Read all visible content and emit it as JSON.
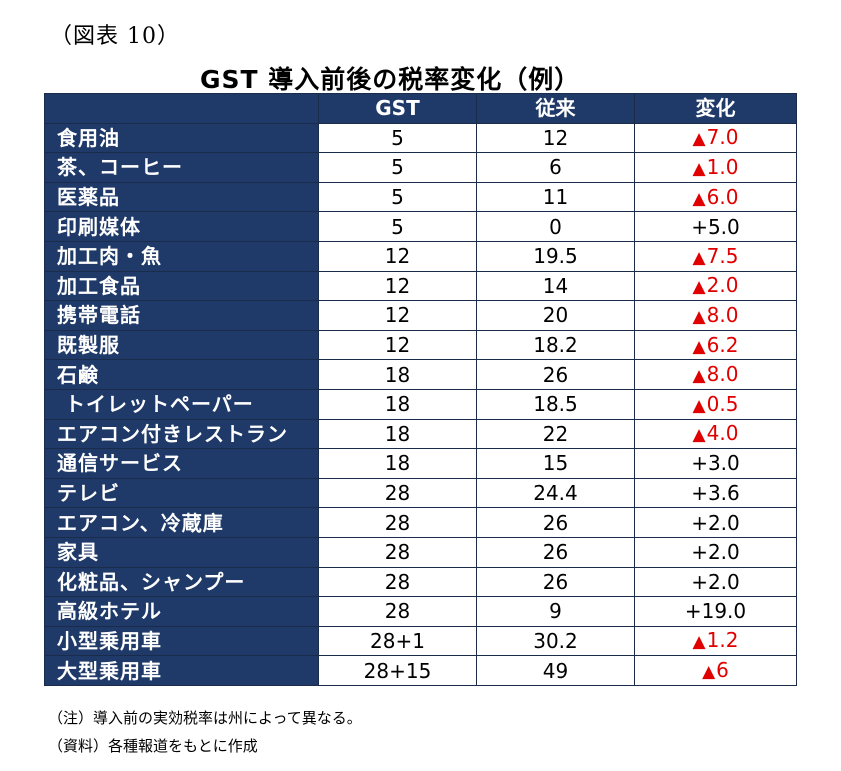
{
  "figure_label": "（図表 10）",
  "title": "GST 導入前後の税率変化（例）",
  "columns": [
    "",
    "GST",
    "従来",
    "変化"
  ],
  "rows": [
    {
      "item": "食用油",
      "gst": "5",
      "before": "12",
      "change": "7.0",
      "rise": true
    },
    {
      "item": "茶、コーヒー",
      "gst": "5",
      "before": "6",
      "change": "1.0",
      "rise": true
    },
    {
      "item": "医薬品",
      "gst": "5",
      "before": "11",
      "change": "6.0",
      "rise": true
    },
    {
      "item": "印刷媒体",
      "gst": "5",
      "before": "0",
      "change": "+5.0",
      "rise": false
    },
    {
      "item": "加工肉・魚",
      "gst": "12",
      "before": "19.5",
      "change": "7.5",
      "rise": true
    },
    {
      "item": "加工食品",
      "gst": "12",
      "before": "14",
      "change": "2.0",
      "rise": true
    },
    {
      "item": "携帯電話",
      "gst": "12",
      "before": "20",
      "change": "8.0",
      "rise": true
    },
    {
      "item": "既製服",
      "gst": "12",
      "before": "18.2",
      "change": "6.2",
      "rise": true
    },
    {
      "item": "石鹸",
      "gst": "18",
      "before": "26",
      "change": "8.0",
      "rise": true
    },
    {
      "item": " トイレットペーパー",
      "gst": "18",
      "before": "18.5",
      "change": "0.5",
      "rise": true
    },
    {
      "item": "エアコン付きレストラン",
      "gst": "18",
      "before": "22",
      "change": "4.0",
      "rise": true
    },
    {
      "item": "通信サービス",
      "gst": "18",
      "before": "15",
      "change": "+3.0",
      "rise": false
    },
    {
      "item": "テレビ",
      "gst": "28",
      "before": "24.4",
      "change": "+3.6",
      "rise": false
    },
    {
      "item": "エアコン、冷蔵庫",
      "gst": "28",
      "before": "26",
      "change": "+2.0",
      "rise": false
    },
    {
      "item": "家具",
      "gst": "28",
      "before": "26",
      "change": "+2.0",
      "rise": false
    },
    {
      "item": "化粧品、シャンプー",
      "gst": "28",
      "before": "26",
      "change": "+2.0",
      "rise": false
    },
    {
      "item": "高級ホテル",
      "gst": "28",
      "before": "9",
      "change": "+19.0",
      "rise": false
    },
    {
      "item": "小型乗用車",
      "gst": "28+1",
      "before": "30.2",
      "change": "1.2",
      "rise": true
    },
    {
      "item": "大型乗用車",
      "gst": "28+15",
      "before": "49",
      "change": "6",
      "rise": true
    }
  ],
  "decrease_marker": "▲",
  "notes": [
    "（注）導入前の実効税率は州によって異なる。",
    "（資料）各種報道をもとに作成"
  ],
  "colors": {
    "header_bg": "#1f3a68",
    "header_text": "#ffffff",
    "decrease_text": "#e00000",
    "border": "#1b2b4a"
  }
}
